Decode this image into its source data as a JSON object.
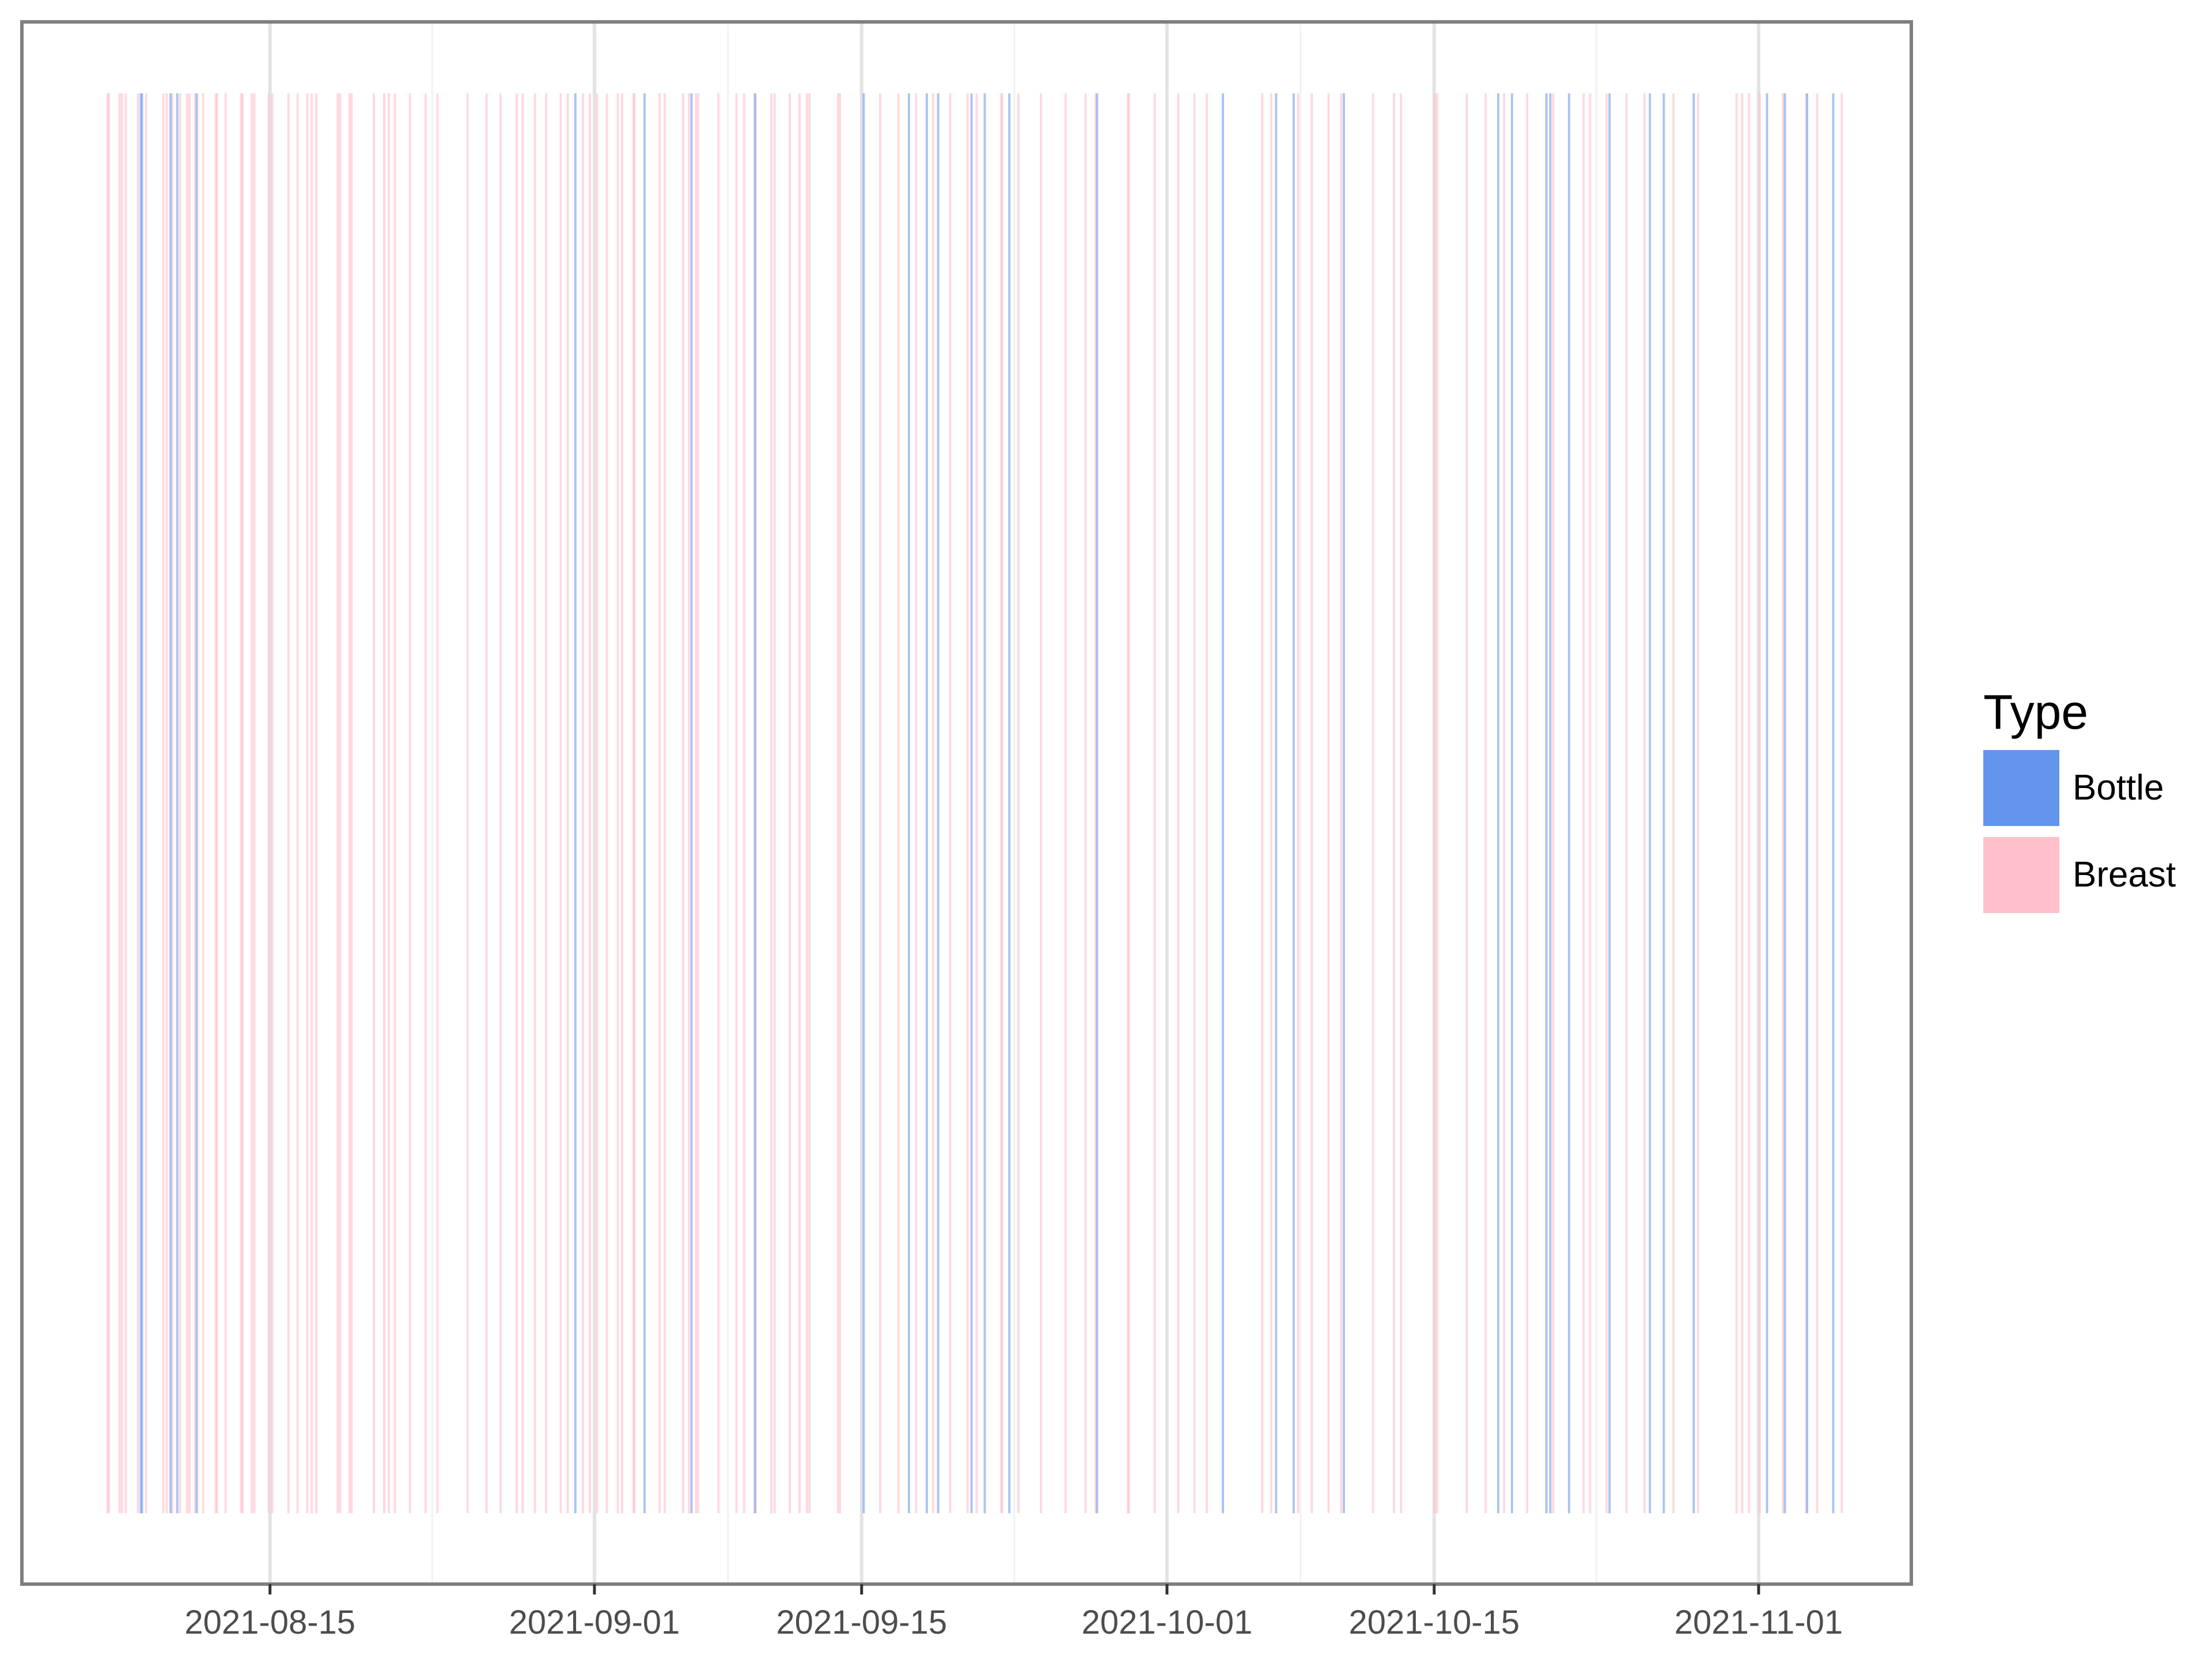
{
  "chart_data": {
    "type": "bar",
    "legend": {
      "title": "Type",
      "placement": "right",
      "entries": [
        {
          "name": "Bottle",
          "color": "#6495ED"
        },
        {
          "name": "Breast",
          "color": "#FFC0CB"
        }
      ]
    },
    "x_axis": {
      "kind": "date",
      "range": [
        "2021-08-02",
        "2021-11-09"
      ],
      "ticks": [
        "2021-08-15",
        "2021-09-01",
        "2021-09-15",
        "2021-10-01",
        "2021-10-15",
        "2021-11-01"
      ]
    },
    "grid": true,
    "series": [
      {
        "name": "Breast",
        "color": "#FFC0CB",
        "dates": [
          "2021-08-06",
          "2021-08-06",
          "2021-08-07",
          "2021-08-07",
          "2021-08-07",
          "2021-08-08",
          "2021-08-08",
          "2021-08-09",
          "2021-08-09",
          "2021-08-09",
          "2021-08-10",
          "2021-08-10",
          "2021-08-10",
          "2021-08-11",
          "2021-08-11",
          "2021-08-12",
          "2021-08-12",
          "2021-08-12",
          "2021-08-13",
          "2021-08-13",
          "2021-08-14",
          "2021-08-14",
          "2021-08-14",
          "2021-08-15",
          "2021-08-15",
          "2021-08-16",
          "2021-08-16",
          "2021-08-17",
          "2021-08-17",
          "2021-08-18",
          "2021-08-18",
          "2021-08-19",
          "2021-08-19",
          "2021-08-20",
          "2021-08-20",
          "2021-08-21",
          "2021-08-21",
          "2021-08-22",
          "2021-08-23",
          "2021-08-23",
          "2021-08-25",
          "2021-08-26",
          "2021-08-27",
          "2021-08-27",
          "2021-08-28",
          "2021-08-28",
          "2021-08-29",
          "2021-08-30",
          "2021-08-30",
          "2021-08-31",
          "2021-08-31",
          "2021-09-01",
          "2021-09-01",
          "2021-09-02",
          "2021-09-02",
          "2021-09-03",
          "2021-09-03",
          "2021-09-04",
          "2021-09-04",
          "2021-09-05",
          "2021-09-05",
          "2021-09-06",
          "2021-09-06",
          "2021-09-07",
          "2021-09-08",
          "2021-09-08",
          "2021-09-09",
          "2021-09-10",
          "2021-09-10",
          "2021-09-11",
          "2021-09-11",
          "2021-09-12",
          "2021-09-12",
          "2021-09-13",
          "2021-09-13",
          "2021-09-15",
          "2021-09-16",
          "2021-09-17",
          "2021-09-18",
          "2021-09-19",
          "2021-09-20",
          "2021-09-21",
          "2021-09-22",
          "2021-09-22",
          "2021-09-23",
          "2021-09-24",
          "2021-09-25",
          "2021-09-26",
          "2021-09-27",
          "2021-09-28",
          "2021-09-29",
          "2021-09-30",
          "2021-10-01",
          "2021-10-02",
          "2021-10-03",
          "2021-10-05",
          "2021-10-06",
          "2021-10-07",
          "2021-10-08",
          "2021-10-09",
          "2021-10-10",
          "2021-10-11",
          "2021-10-12",
          "2021-10-13",
          "2021-10-15",
          "2021-10-15",
          "2021-10-16",
          "2021-10-17",
          "2021-10-18",
          "2021-10-19",
          "2021-10-21",
          "2021-10-22",
          "2021-10-23",
          "2021-10-24",
          "2021-10-25",
          "2021-10-26",
          "2021-10-27",
          "2021-10-28",
          "2021-10-30",
          "2021-10-31",
          "2021-10-31",
          "2021-11-01",
          "2021-11-02",
          "2021-11-03",
          "2021-11-04",
          "2021-11-05"
        ]
      },
      {
        "name": "Bottle",
        "color": "#6495ED",
        "dates": [
          "2021-08-08",
          "2021-08-08",
          "2021-08-09",
          "2021-08-10",
          "2021-08-11",
          "2021-08-31",
          "2021-09-03",
          "2021-09-06",
          "2021-09-09",
          "2021-09-15",
          "2021-09-17",
          "2021-09-18",
          "2021-09-19",
          "2021-09-20",
          "2021-09-21",
          "2021-09-22",
          "2021-09-27",
          "2021-10-03",
          "2021-10-06",
          "2021-10-07",
          "2021-10-10",
          "2021-10-18",
          "2021-10-19",
          "2021-10-20",
          "2021-10-21",
          "2021-10-22",
          "2021-10-24",
          "2021-10-26",
          "2021-10-27",
          "2021-10-28",
          "2021-11-01",
          "2021-11-02",
          "2021-11-03",
          "2021-11-04"
        ]
      }
    ]
  }
}
